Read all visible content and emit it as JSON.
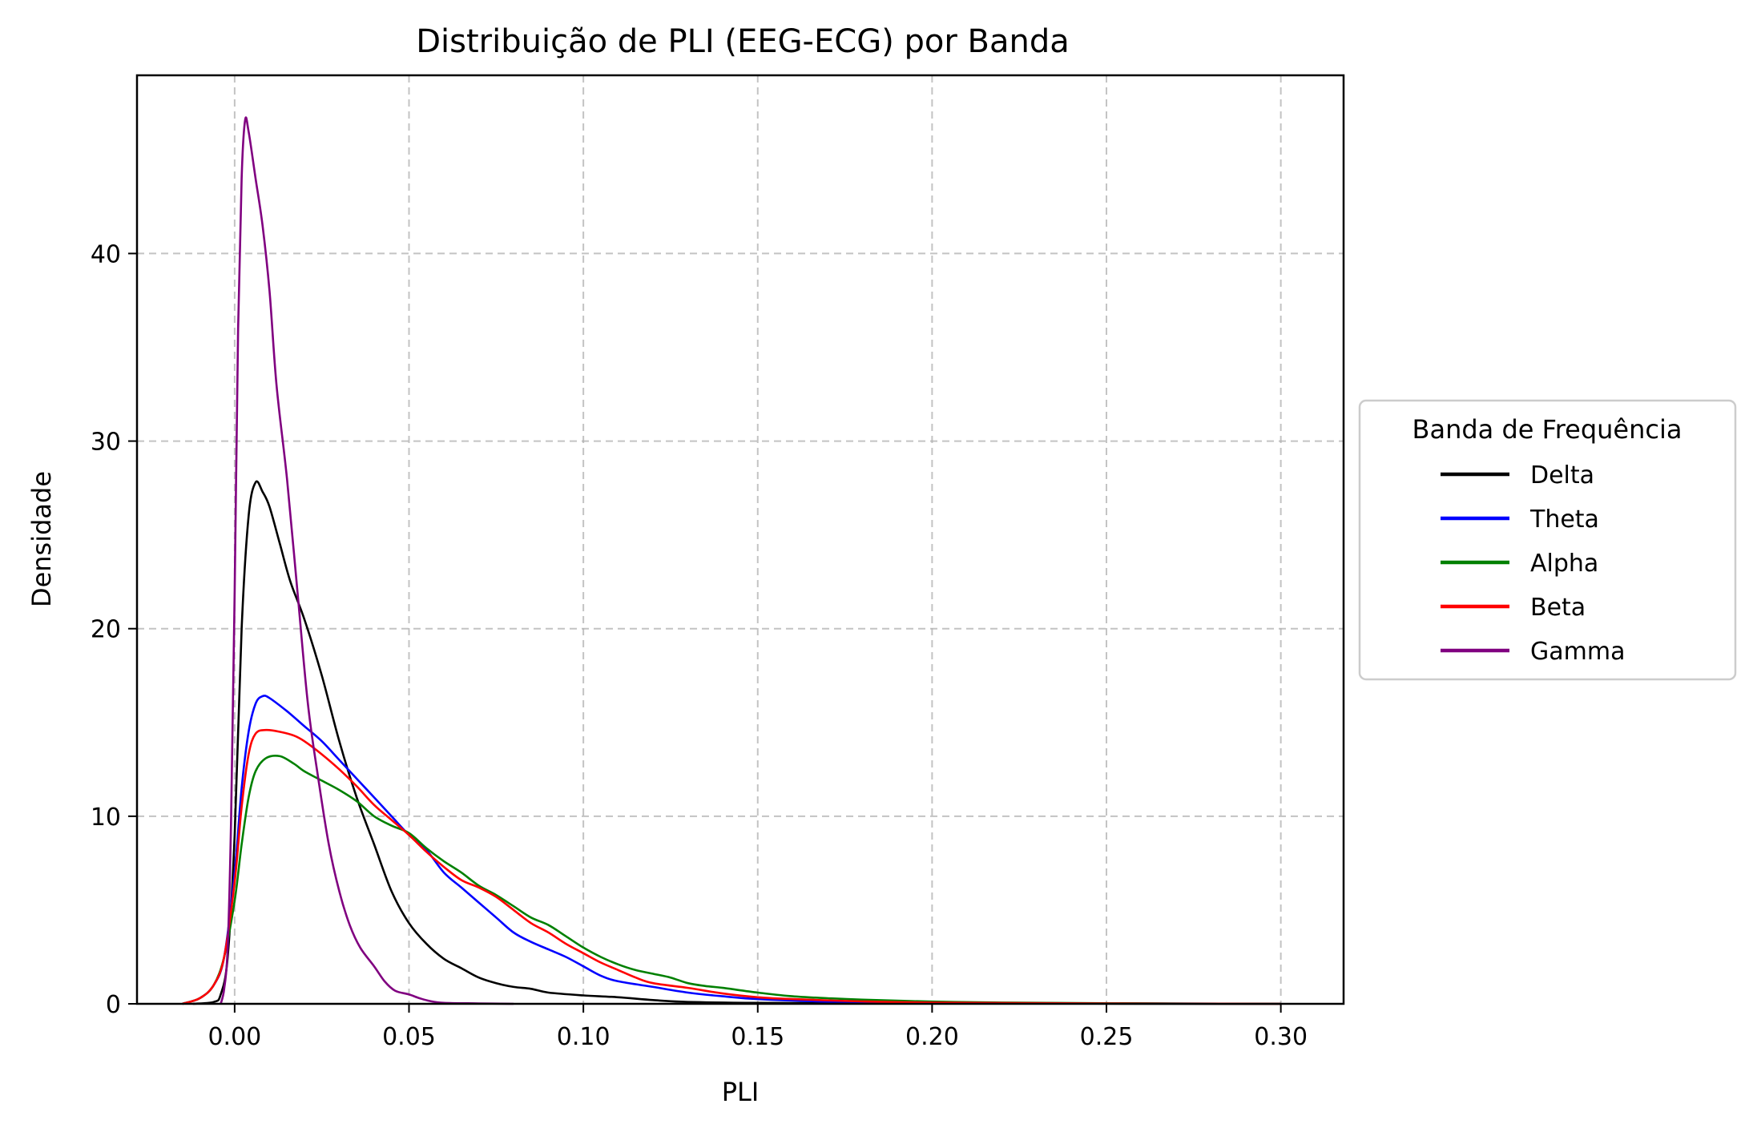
{
  "chart_data": {
    "type": "line",
    "title": "Distribuição de PLI (EEG-ECG) por Banda",
    "xlabel": "PLI",
    "ylabel": "Densidade",
    "xlim": [
      -0.028,
      0.318
    ],
    "ylim": [
      0,
      49.5
    ],
    "x_ticks": [
      0.0,
      0.05,
      0.1,
      0.15,
      0.2,
      0.25,
      0.3
    ],
    "x_tick_labels": [
      "0.00",
      "0.05",
      "0.10",
      "0.15",
      "0.20",
      "0.25",
      "0.30"
    ],
    "y_ticks": [
      0,
      10,
      20,
      30,
      40
    ],
    "y_tick_labels": [
      "0",
      "10",
      "20",
      "30",
      "40"
    ],
    "grid": true,
    "legend": {
      "title": "Banda de Frequência",
      "placement": "outside-right"
    },
    "series": [
      {
        "name": "Delta",
        "color": "#000000",
        "points": [
          [
            -0.012,
            0
          ],
          [
            -0.006,
            0.1
          ],
          [
            -0.004,
            0.5
          ],
          [
            -0.002,
            2.5
          ],
          [
            0.0,
            9
          ],
          [
            0.002,
            20
          ],
          [
            0.004,
            26
          ],
          [
            0.006,
            27.8
          ],
          [
            0.008,
            27.3
          ],
          [
            0.01,
            26.5
          ],
          [
            0.013,
            24.5
          ],
          [
            0.016,
            22.5
          ],
          [
            0.02,
            20.5
          ],
          [
            0.025,
            17.5
          ],
          [
            0.03,
            14
          ],
          [
            0.035,
            11
          ],
          [
            0.04,
            8.5
          ],
          [
            0.045,
            6
          ],
          [
            0.05,
            4.3
          ],
          [
            0.055,
            3.2
          ],
          [
            0.06,
            2.4
          ],
          [
            0.065,
            1.9
          ],
          [
            0.07,
            1.4
          ],
          [
            0.075,
            1.1
          ],
          [
            0.08,
            0.9
          ],
          [
            0.085,
            0.8
          ],
          [
            0.09,
            0.6
          ],
          [
            0.1,
            0.45
          ],
          [
            0.11,
            0.35
          ],
          [
            0.12,
            0.2
          ],
          [
            0.13,
            0.1
          ],
          [
            0.15,
            0.05
          ],
          [
            0.2,
            0.02
          ],
          [
            0.3,
            0
          ]
        ]
      },
      {
        "name": "Theta",
        "color": "#0000ff",
        "points": [
          [
            -0.015,
            0
          ],
          [
            -0.01,
            0.3
          ],
          [
            -0.006,
            1
          ],
          [
            -0.003,
            2.5
          ],
          [
            0.0,
            7
          ],
          [
            0.002,
            11.5
          ],
          [
            0.004,
            14.5
          ],
          [
            0.006,
            16
          ],
          [
            0.008,
            16.4
          ],
          [
            0.01,
            16.3
          ],
          [
            0.015,
            15.6
          ],
          [
            0.02,
            14.8
          ],
          [
            0.025,
            14
          ],
          [
            0.03,
            13
          ],
          [
            0.035,
            12
          ],
          [
            0.04,
            11
          ],
          [
            0.045,
            10
          ],
          [
            0.05,
            9
          ],
          [
            0.055,
            8.2
          ],
          [
            0.06,
            7
          ],
          [
            0.065,
            6.2
          ],
          [
            0.07,
            5.4
          ],
          [
            0.075,
            4.6
          ],
          [
            0.08,
            3.8
          ],
          [
            0.085,
            3.3
          ],
          [
            0.09,
            2.9
          ],
          [
            0.095,
            2.5
          ],
          [
            0.1,
            2
          ],
          [
            0.105,
            1.5
          ],
          [
            0.11,
            1.2
          ],
          [
            0.12,
            0.9
          ],
          [
            0.13,
            0.6
          ],
          [
            0.14,
            0.4
          ],
          [
            0.15,
            0.25
          ],
          [
            0.17,
            0.12
          ],
          [
            0.2,
            0.05
          ],
          [
            0.25,
            0.02
          ],
          [
            0.3,
            0
          ]
        ]
      },
      {
        "name": "Alpha",
        "color": "#008000",
        "points": [
          [
            -0.015,
            0
          ],
          [
            -0.01,
            0.3
          ],
          [
            -0.006,
            1
          ],
          [
            -0.003,
            2.5
          ],
          [
            0.0,
            5.5
          ],
          [
            0.002,
            8.5
          ],
          [
            0.004,
            11
          ],
          [
            0.006,
            12.4
          ],
          [
            0.009,
            13.1
          ],
          [
            0.013,
            13.2
          ],
          [
            0.017,
            12.8
          ],
          [
            0.02,
            12.4
          ],
          [
            0.025,
            11.9
          ],
          [
            0.03,
            11.4
          ],
          [
            0.035,
            10.8
          ],
          [
            0.04,
            10
          ],
          [
            0.045,
            9.5
          ],
          [
            0.05,
            9.1
          ],
          [
            0.055,
            8.3
          ],
          [
            0.06,
            7.6
          ],
          [
            0.065,
            7
          ],
          [
            0.07,
            6.3
          ],
          [
            0.075,
            5.8
          ],
          [
            0.08,
            5.2
          ],
          [
            0.085,
            4.6
          ],
          [
            0.09,
            4.2
          ],
          [
            0.095,
            3.6
          ],
          [
            0.1,
            3
          ],
          [
            0.105,
            2.5
          ],
          [
            0.11,
            2.1
          ],
          [
            0.115,
            1.8
          ],
          [
            0.12,
            1.6
          ],
          [
            0.125,
            1.4
          ],
          [
            0.13,
            1.1
          ],
          [
            0.135,
            0.95
          ],
          [
            0.14,
            0.85
          ],
          [
            0.15,
            0.6
          ],
          [
            0.16,
            0.4
          ],
          [
            0.17,
            0.3
          ],
          [
            0.18,
            0.22
          ],
          [
            0.2,
            0.12
          ],
          [
            0.22,
            0.07
          ],
          [
            0.25,
            0.03
          ],
          [
            0.3,
            0
          ]
        ]
      },
      {
        "name": "Beta",
        "color": "#ff0000",
        "points": [
          [
            -0.015,
            0
          ],
          [
            -0.01,
            0.3
          ],
          [
            -0.006,
            1
          ],
          [
            -0.003,
            2.5
          ],
          [
            0.0,
            6.5
          ],
          [
            0.002,
            10.5
          ],
          [
            0.004,
            13.3
          ],
          [
            0.006,
            14.4
          ],
          [
            0.009,
            14.6
          ],
          [
            0.013,
            14.5
          ],
          [
            0.017,
            14.3
          ],
          [
            0.02,
            14
          ],
          [
            0.025,
            13.3
          ],
          [
            0.03,
            12.5
          ],
          [
            0.035,
            11.6
          ],
          [
            0.04,
            10.6
          ],
          [
            0.045,
            9.8
          ],
          [
            0.05,
            9
          ],
          [
            0.055,
            8.1
          ],
          [
            0.06,
            7.3
          ],
          [
            0.065,
            6.6
          ],
          [
            0.07,
            6.2
          ],
          [
            0.075,
            5.7
          ],
          [
            0.08,
            5
          ],
          [
            0.085,
            4.3
          ],
          [
            0.09,
            3.8
          ],
          [
            0.095,
            3.2
          ],
          [
            0.1,
            2.7
          ],
          [
            0.105,
            2.2
          ],
          [
            0.11,
            1.8
          ],
          [
            0.115,
            1.4
          ],
          [
            0.12,
            1.1
          ],
          [
            0.13,
            0.85
          ],
          [
            0.14,
            0.55
          ],
          [
            0.15,
            0.35
          ],
          [
            0.16,
            0.25
          ],
          [
            0.18,
            0.13
          ],
          [
            0.2,
            0.07
          ],
          [
            0.25,
            0.02
          ],
          [
            0.3,
            0
          ]
        ]
      },
      {
        "name": "Gamma",
        "color": "#800080",
        "points": [
          [
            -0.004,
            0
          ],
          [
            -0.003,
            0.8
          ],
          [
            -0.002,
            3
          ],
          [
            -0.001,
            10
          ],
          [
            0.0,
            22
          ],
          [
            0.001,
            36
          ],
          [
            0.002,
            44
          ],
          [
            0.003,
            47.1
          ],
          [
            0.004,
            46.5
          ],
          [
            0.006,
            44
          ],
          [
            0.008,
            41.5
          ],
          [
            0.01,
            38
          ],
          [
            0.012,
            33
          ],
          [
            0.015,
            28
          ],
          [
            0.018,
            22
          ],
          [
            0.021,
            16
          ],
          [
            0.024,
            12
          ],
          [
            0.027,
            8.5
          ],
          [
            0.03,
            6
          ],
          [
            0.033,
            4.2
          ],
          [
            0.036,
            3
          ],
          [
            0.04,
            2
          ],
          [
            0.043,
            1.2
          ],
          [
            0.046,
            0.7
          ],
          [
            0.05,
            0.5
          ],
          [
            0.053,
            0.3
          ],
          [
            0.056,
            0.15
          ],
          [
            0.06,
            0.05
          ],
          [
            0.07,
            0.02
          ],
          [
            0.08,
            0
          ]
        ]
      }
    ]
  }
}
